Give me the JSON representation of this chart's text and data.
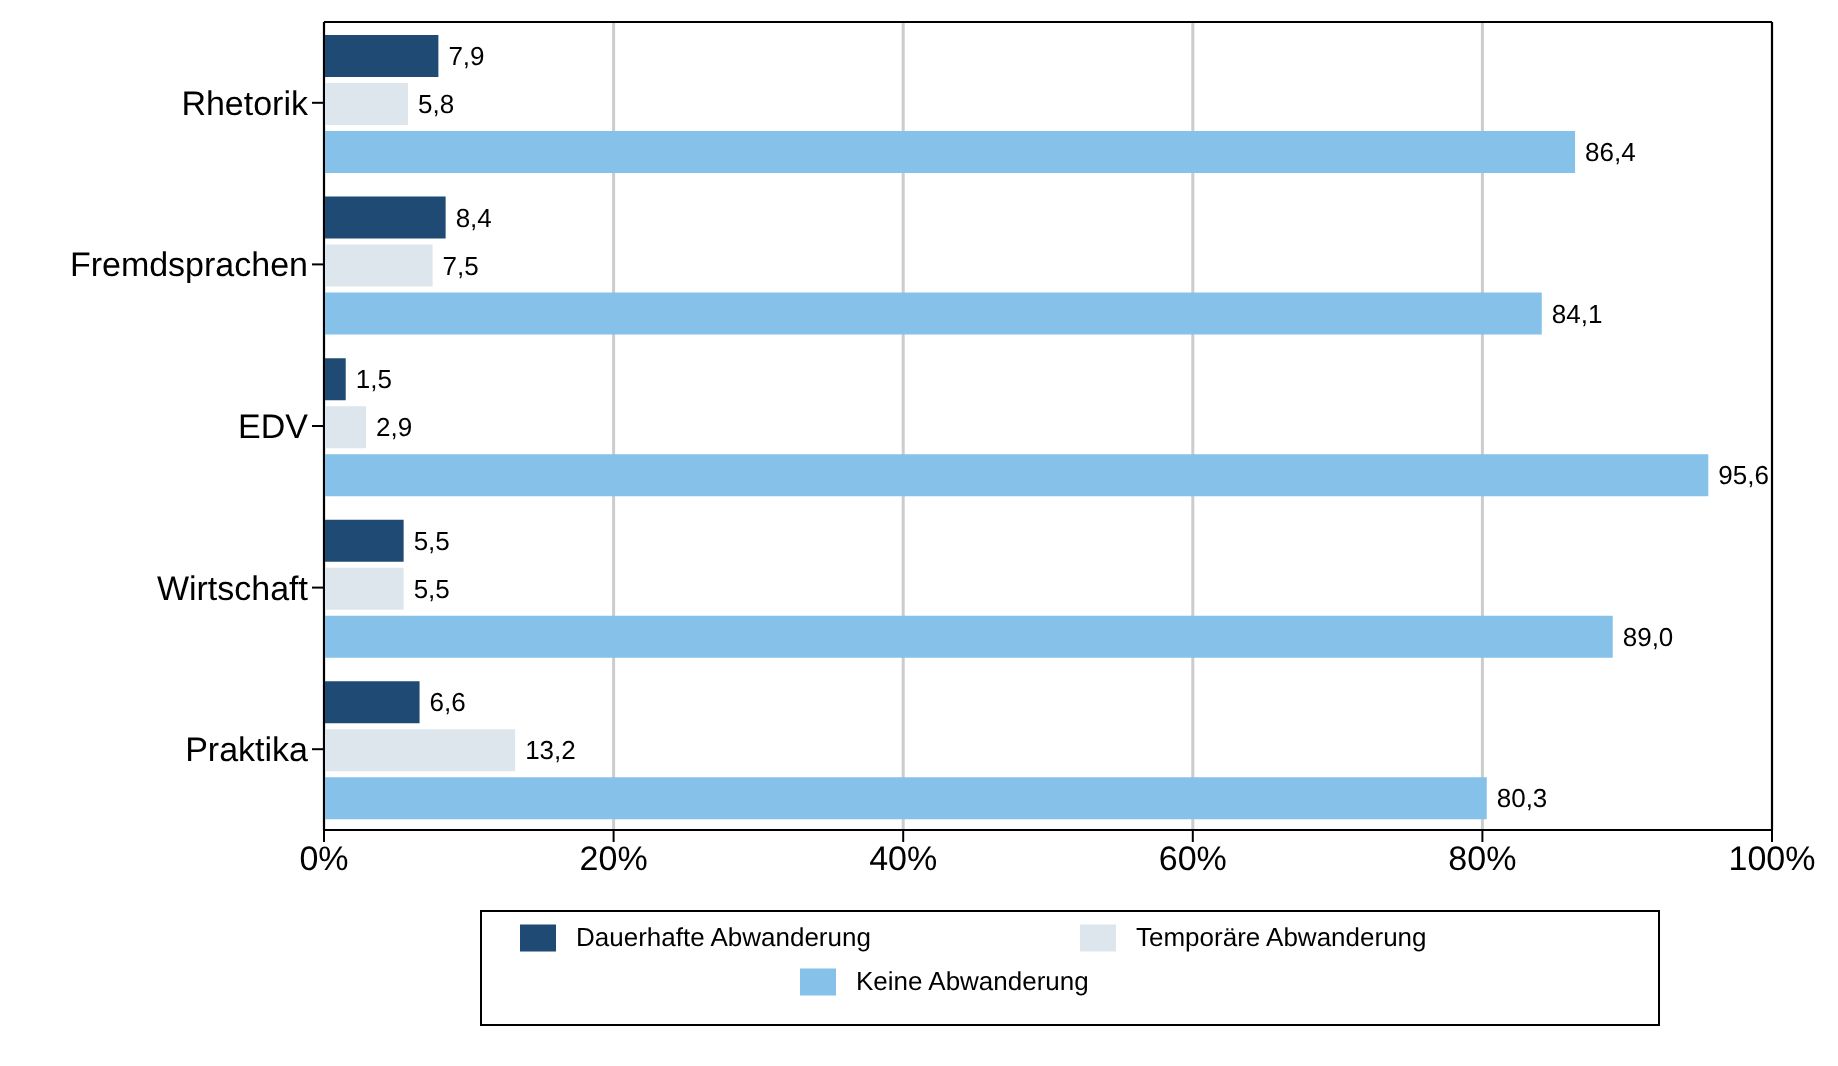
{
  "chart_data": {
    "type": "bar",
    "orientation": "horizontal",
    "categories": [
      "Rhetorik",
      "Fremdsprachen",
      "EDV",
      "Wirtschaft",
      "Praktika"
    ],
    "series": [
      {
        "name": "Dauerhafte Abwanderung",
        "color": "#1f4a73",
        "values": [
          7.9,
          8.4,
          1.5,
          5.5,
          6.6
        ],
        "value_labels": [
          "7,9",
          "8,4",
          "1,5",
          "5,5",
          "6,6"
        ]
      },
      {
        "name": "Temporäre Abwanderung",
        "color": "#dce6ec",
        "values": [
          5.8,
          7.5,
          2.9,
          5.5,
          13.2
        ],
        "value_labels": [
          "5,8",
          "7,5",
          "2,9",
          "5,5",
          "13,2"
        ]
      },
      {
        "name": "Keine Abwanderung",
        "color": "#85c1e9",
        "values": [
          86.4,
          84.1,
          95.6,
          89.0,
          80.3
        ],
        "value_labels": [
          "86,4",
          "84,1",
          "95,6",
          "89,0",
          "80,3"
        ]
      }
    ],
    "xlim": [
      0,
      100
    ],
    "xticks": [
      {
        "value": 0,
        "label": "0%"
      },
      {
        "value": 20,
        "label": "20%"
      },
      {
        "value": 40,
        "label": "40%"
      },
      {
        "value": 60,
        "label": "60%"
      },
      {
        "value": 80,
        "label": "80%"
      },
      {
        "value": 100,
        "label": "100%"
      }
    ],
    "grid": "x",
    "legend": "bottom"
  }
}
